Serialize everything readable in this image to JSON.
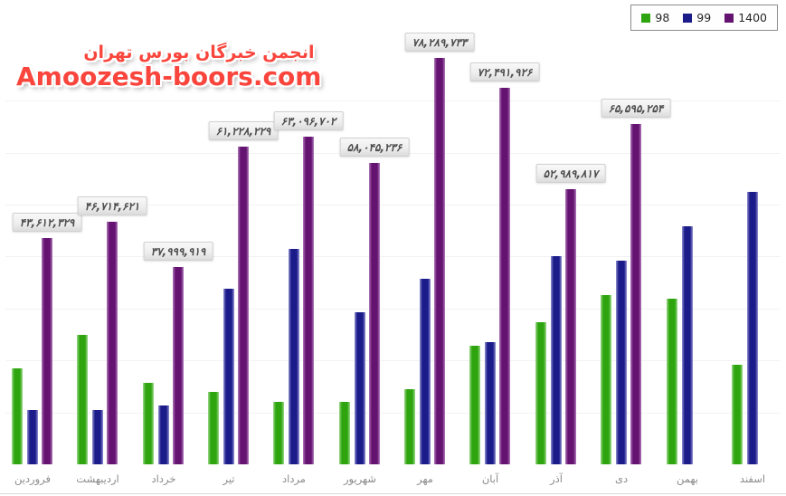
{
  "watermark": {
    "line1": "انجمن خبرگان بورس تهران",
    "line2": "Amoozesh-boors.com",
    "color": "#f9453c"
  },
  "legend": {
    "items": [
      {
        "label": "98",
        "color": "#2ea50f"
      },
      {
        "label": "99",
        "color": "#1b1b8a"
      },
      {
        "label": "1400",
        "color": "#641370"
      }
    ]
  },
  "chart_data": {
    "type": "bar",
    "title": "",
    "xlabel": "",
    "ylabel": "",
    "ylim": [
      0,
      88000000
    ],
    "grid": true,
    "grid_step": 10000000,
    "legend_position": "top-right",
    "categories": [
      "فروردین",
      "اردیبهشت",
      "خرداد",
      "تیر",
      "مرداد",
      "شهریور",
      "مهر",
      "آبان",
      "آذر",
      "دی",
      "بهمن",
      "اسفند"
    ],
    "series": [
      {
        "name": "98",
        "color": "#2ea50f",
        "edge_color": "#9fd98c",
        "values": [
          18550000,
          24850000,
          15600000,
          14000000,
          12100000,
          12100000,
          14500000,
          22900000,
          27300000,
          32600000,
          31900000,
          19250000
        ]
      },
      {
        "name": "99",
        "color": "#1b1b8a",
        "edge_color": "#9393d2",
        "values": [
          10500000,
          10500000,
          11400000,
          33800000,
          41500000,
          29200000,
          35700000,
          23600000,
          40100000,
          39200000,
          45900000,
          52500000
        ]
      },
      {
        "name": "1400",
        "color": "#641370",
        "edge_color": "#b27cbc",
        "values": [
          43612329,
          46714621,
          37999919,
          61228229,
          63096702,
          58045236,
          78289733,
          72491926,
          52989817,
          65595254,
          null,
          null
        ],
        "labels": [
          "۴۳,۶۱۲,۳۲۹",
          "۴۶,۷۱۴,۶۲۱",
          "۳۷,۹۹۹,۹۱۹",
          "۶۱,۲۲۸,۲۲۹",
          "۶۳,۰۹۶,۷۰۲",
          "۵۸,۰۴۵,۲۳۶",
          "۷۸,۲۸۹,۷۳۳",
          "۷۲,۴۹۱,۹۲۶",
          "۵۲,۹۸۹,۸۱۷",
          "۶۵,۵۹۵,۲۵۴"
        ]
      }
    ]
  }
}
